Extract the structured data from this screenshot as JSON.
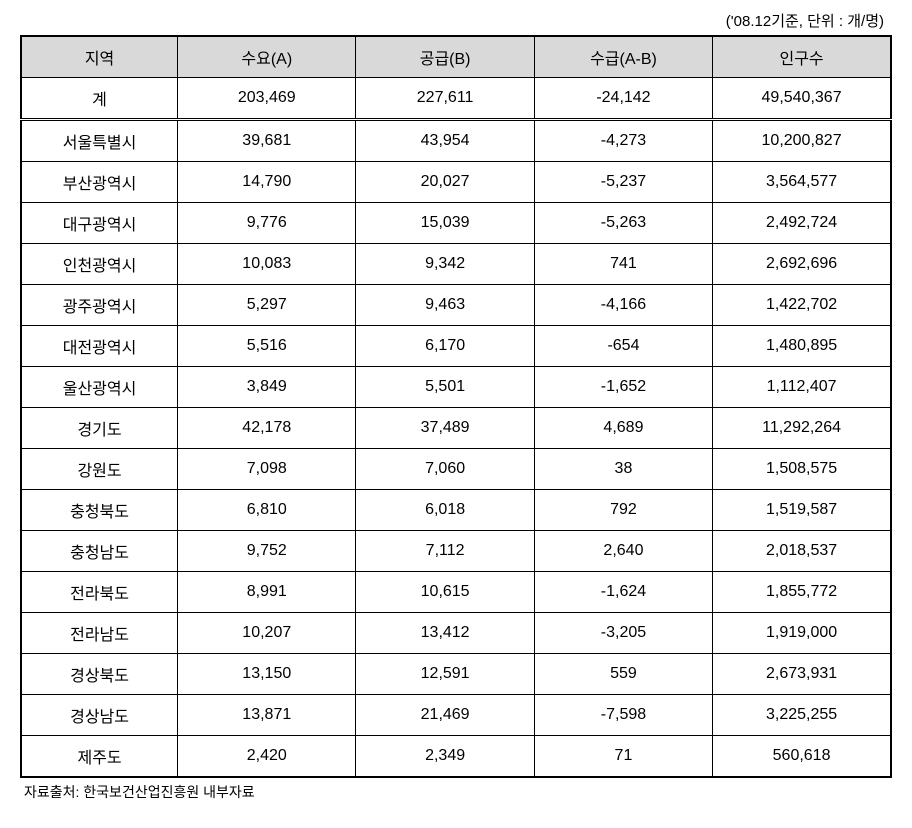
{
  "caption": "('08.12기준, 단위 : 개/명)",
  "headers": {
    "region": "지역",
    "demand": "수요(A)",
    "supply": "공급(B)",
    "balance": "수급(A-B)",
    "population": "인구수"
  },
  "total": {
    "label": "계",
    "demand": "203,469",
    "supply": "227,611",
    "balance": "-24,142",
    "population": "49,540,367"
  },
  "rows": [
    {
      "region": "서울특별시",
      "demand": "39,681",
      "supply": "43,954",
      "balance": "-4,273",
      "population": "10,200,827"
    },
    {
      "region": "부산광역시",
      "demand": "14,790",
      "supply": "20,027",
      "balance": "-5,237",
      "population": "3,564,577"
    },
    {
      "region": "대구광역시",
      "demand": "9,776",
      "supply": "15,039",
      "balance": "-5,263",
      "population": "2,492,724"
    },
    {
      "region": "인천광역시",
      "demand": "10,083",
      "supply": "9,342",
      "balance": "741",
      "population": "2,692,696"
    },
    {
      "region": "광주광역시",
      "demand": "5,297",
      "supply": "9,463",
      "balance": "-4,166",
      "population": "1,422,702"
    },
    {
      "region": "대전광역시",
      "demand": "5,516",
      "supply": "6,170",
      "balance": "-654",
      "population": "1,480,895"
    },
    {
      "region": "울산광역시",
      "demand": "3,849",
      "supply": "5,501",
      "balance": "-1,652",
      "population": "1,112,407"
    },
    {
      "region": "경기도",
      "demand": "42,178",
      "supply": "37,489",
      "balance": "4,689",
      "population": "11,292,264"
    },
    {
      "region": "강원도",
      "demand": "7,098",
      "supply": "7,060",
      "balance": "38",
      "population": "1,508,575"
    },
    {
      "region": "충청북도",
      "demand": "6,810",
      "supply": "6,018",
      "balance": "792",
      "population": "1,519,587"
    },
    {
      "region": "충청남도",
      "demand": "9,752",
      "supply": "7,112",
      "balance": "2,640",
      "population": "2,018,537"
    },
    {
      "region": "전라북도",
      "demand": "8,991",
      "supply": "10,615",
      "balance": "-1,624",
      "population": "1,855,772"
    },
    {
      "region": "전라남도",
      "demand": "10,207",
      "supply": "13,412",
      "balance": "-3,205",
      "population": "1,919,000"
    },
    {
      "region": "경상북도",
      "demand": "13,150",
      "supply": "12,591",
      "balance": "559",
      "population": "2,673,931"
    },
    {
      "region": "경상남도",
      "demand": "13,871",
      "supply": "21,469",
      "balance": "-7,598",
      "population": "3,225,255"
    },
    {
      "region": "제주도",
      "demand": "2,420",
      "supply": "2,349",
      "balance": "71",
      "population": "560,618"
    }
  ],
  "footnote": "자료출처: 한국보건산업진흥원 내부자료",
  "styling": {
    "header_bg": "#d9d9d9",
    "border_color": "#000000",
    "outer_border_width": 2,
    "inner_border_width": 1,
    "font_size_body": 16,
    "font_size_caption": 15,
    "font_size_footnote": 14,
    "col_widths": [
      "18%",
      "20.5%",
      "20.5%",
      "20.5%",
      "20.5%"
    ]
  }
}
